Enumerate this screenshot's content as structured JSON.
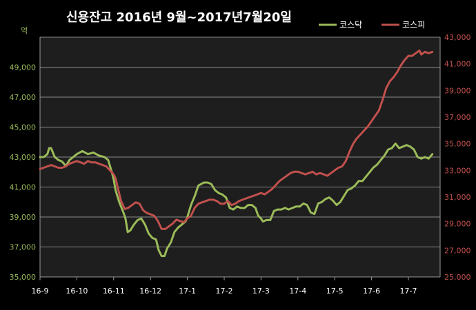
{
  "chart_data": {
    "type": "line",
    "title": "신용잔고  2016년 9월~2017년7월20일",
    "left_unit": "억",
    "x_ticks": [
      "16-9",
      "16-10",
      "16-11",
      "16-12",
      "17-1",
      "17-2",
      "17-3",
      "17-4",
      "17-5",
      "17-6",
      "17-7"
    ],
    "y_left": {
      "min": 35000,
      "max": 51000,
      "ticks": [
        "35,000",
        "37,000",
        "39,000",
        "41,000",
        "43,000",
        "45,000",
        "47,000",
        "49,000"
      ],
      "tick_values": [
        35000,
        37000,
        39000,
        41000,
        43000,
        45000,
        47000,
        49000
      ]
    },
    "y_right": {
      "min": 25000,
      "max": 43000,
      "ticks": [
        "25,000",
        "27,000",
        "29,000",
        "31,000",
        "33,000",
        "35,000",
        "37,000",
        "39,000",
        "41,000",
        "43,000"
      ],
      "tick_values": [
        25000,
        27000,
        29000,
        31000,
        33000,
        35000,
        37000,
        39000,
        41000,
        43000
      ]
    },
    "grid": true,
    "legend_position": "top-right",
    "series": [
      {
        "name": "코스닥",
        "axis": "left",
        "color": "#9bbb59",
        "points": [
          [
            0.0,
            43000
          ],
          [
            0.1,
            43000
          ],
          [
            0.2,
            43200
          ],
          [
            0.25,
            43600
          ],
          [
            0.3,
            43600
          ],
          [
            0.35,
            43300
          ],
          [
            0.4,
            43000
          ],
          [
            0.5,
            42800
          ],
          [
            0.6,
            42700
          ],
          [
            0.7,
            42400
          ],
          [
            0.8,
            42800
          ],
          [
            0.9,
            43000
          ],
          [
            1.0,
            43200
          ],
          [
            1.15,
            43400
          ],
          [
            1.3,
            43200
          ],
          [
            1.45,
            43300
          ],
          [
            1.6,
            43100
          ],
          [
            1.75,
            43000
          ],
          [
            1.85,
            42800
          ],
          [
            1.95,
            42000
          ],
          [
            2.0,
            41500
          ],
          [
            2.05,
            40800
          ],
          [
            2.15,
            40000
          ],
          [
            2.25,
            39400
          ],
          [
            2.32,
            38900
          ],
          [
            2.38,
            38000
          ],
          [
            2.45,
            38100
          ],
          [
            2.55,
            38500
          ],
          [
            2.65,
            38800
          ],
          [
            2.75,
            38900
          ],
          [
            2.85,
            38500
          ],
          [
            2.95,
            37900
          ],
          [
            3.05,
            37600
          ],
          [
            3.15,
            37500
          ],
          [
            3.22,
            36800
          ],
          [
            3.3,
            36400
          ],
          [
            3.38,
            36400
          ],
          [
            3.45,
            36900
          ],
          [
            3.55,
            37300
          ],
          [
            3.65,
            38000
          ],
          [
            3.75,
            38300
          ],
          [
            3.85,
            38500
          ],
          [
            3.95,
            38700
          ],
          [
            4.0,
            39000
          ],
          [
            4.1,
            39800
          ],
          [
            4.2,
            40400
          ],
          [
            4.3,
            41100
          ],
          [
            4.45,
            41300
          ],
          [
            4.55,
            41300
          ],
          [
            4.65,
            41200
          ],
          [
            4.75,
            40800
          ],
          [
            4.85,
            40600
          ],
          [
            4.95,
            40500
          ],
          [
            5.05,
            40300
          ],
          [
            5.15,
            39600
          ],
          [
            5.25,
            39500
          ],
          [
            5.35,
            39700
          ],
          [
            5.45,
            39600
          ],
          [
            5.55,
            39600
          ],
          [
            5.65,
            39800
          ],
          [
            5.75,
            39800
          ],
          [
            5.85,
            39600
          ],
          [
            5.92,
            39100
          ],
          [
            6.0,
            38900
          ],
          [
            6.05,
            38700
          ],
          [
            6.15,
            38800
          ],
          [
            6.25,
            38800
          ],
          [
            6.35,
            39400
          ],
          [
            6.45,
            39500
          ],
          [
            6.55,
            39500
          ],
          [
            6.65,
            39600
          ],
          [
            6.75,
            39500
          ],
          [
            6.85,
            39600
          ],
          [
            6.95,
            39700
          ],
          [
            7.05,
            39700
          ],
          [
            7.15,
            39900
          ],
          [
            7.25,
            39800
          ],
          [
            7.35,
            39300
          ],
          [
            7.45,
            39200
          ],
          [
            7.55,
            39900
          ],
          [
            7.65,
            40000
          ],
          [
            7.75,
            40200
          ],
          [
            7.85,
            40300
          ],
          [
            7.95,
            40100
          ],
          [
            8.05,
            39800
          ],
          [
            8.15,
            40000
          ],
          [
            8.25,
            40400
          ],
          [
            8.35,
            40800
          ],
          [
            8.45,
            40900
          ],
          [
            8.55,
            41100
          ],
          [
            8.65,
            41400
          ],
          [
            8.75,
            41400
          ],
          [
            8.85,
            41700
          ],
          [
            8.95,
            42000
          ],
          [
            9.05,
            42300
          ],
          [
            9.15,
            42500
          ],
          [
            9.25,
            42800
          ],
          [
            9.35,
            43100
          ],
          [
            9.45,
            43500
          ],
          [
            9.55,
            43600
          ],
          [
            9.65,
            43900
          ],
          [
            9.75,
            43600
          ],
          [
            9.85,
            43700
          ],
          [
            9.95,
            43800
          ],
          [
            10.05,
            43700
          ],
          [
            10.15,
            43500
          ],
          [
            10.25,
            43000
          ],
          [
            10.35,
            42900
          ],
          [
            10.45,
            43000
          ],
          [
            10.55,
            42900
          ],
          [
            10.65,
            43200
          ]
        ]
      },
      {
        "name": "코스피",
        "axis": "right",
        "color": "#c0504d",
        "points": [
          [
            0.0,
            33100
          ],
          [
            0.1,
            33200
          ],
          [
            0.2,
            33300
          ],
          [
            0.3,
            33400
          ],
          [
            0.4,
            33300
          ],
          [
            0.5,
            33200
          ],
          [
            0.6,
            33200
          ],
          [
            0.7,
            33300
          ],
          [
            0.8,
            33500
          ],
          [
            0.9,
            33600
          ],
          [
            1.0,
            33700
          ],
          [
            1.1,
            33600
          ],
          [
            1.2,
            33500
          ],
          [
            1.3,
            33700
          ],
          [
            1.4,
            33600
          ],
          [
            1.5,
            33600
          ],
          [
            1.6,
            33500
          ],
          [
            1.7,
            33400
          ],
          [
            1.8,
            33300
          ],
          [
            1.9,
            33000
          ],
          [
            2.0,
            32700
          ],
          [
            2.05,
            32400
          ],
          [
            2.12,
            31600
          ],
          [
            2.2,
            30700
          ],
          [
            2.3,
            30100
          ],
          [
            2.4,
            30200
          ],
          [
            2.5,
            30400
          ],
          [
            2.6,
            30600
          ],
          [
            2.7,
            30500
          ],
          [
            2.8,
            30000
          ],
          [
            2.9,
            29800
          ],
          [
            3.0,
            29700
          ],
          [
            3.1,
            29600
          ],
          [
            3.2,
            29200
          ],
          [
            3.3,
            28600
          ],
          [
            3.4,
            28600
          ],
          [
            3.5,
            28800
          ],
          [
            3.6,
            29000
          ],
          [
            3.7,
            29300
          ],
          [
            3.8,
            29200
          ],
          [
            3.9,
            29100
          ],
          [
            4.0,
            29400
          ],
          [
            4.1,
            29600
          ],
          [
            4.2,
            30200
          ],
          [
            4.3,
            30500
          ],
          [
            4.4,
            30600
          ],
          [
            4.5,
            30700
          ],
          [
            4.6,
            30800
          ],
          [
            4.7,
            30800
          ],
          [
            4.8,
            30700
          ],
          [
            4.9,
            30500
          ],
          [
            5.0,
            30500
          ],
          [
            5.1,
            30700
          ],
          [
            5.2,
            30400
          ],
          [
            5.3,
            30500
          ],
          [
            5.4,
            30700
          ],
          [
            5.5,
            30800
          ],
          [
            5.6,
            30900
          ],
          [
            5.7,
            31000
          ],
          [
            5.8,
            31100
          ],
          [
            5.9,
            31200
          ],
          [
            6.0,
            31300
          ],
          [
            6.1,
            31200
          ],
          [
            6.2,
            31400
          ],
          [
            6.3,
            31600
          ],
          [
            6.4,
            31900
          ],
          [
            6.5,
            32200
          ],
          [
            6.6,
            32400
          ],
          [
            6.7,
            32600
          ],
          [
            6.8,
            32800
          ],
          [
            6.9,
            32900
          ],
          [
            7.0,
            32900
          ],
          [
            7.1,
            32800
          ],
          [
            7.2,
            32700
          ],
          [
            7.3,
            32800
          ],
          [
            7.4,
            32900
          ],
          [
            7.5,
            32700
          ],
          [
            7.6,
            32800
          ],
          [
            7.7,
            32700
          ],
          [
            7.8,
            32600
          ],
          [
            7.9,
            32800
          ],
          [
            8.0,
            33000
          ],
          [
            8.1,
            33200
          ],
          [
            8.2,
            33300
          ],
          [
            8.3,
            33700
          ],
          [
            8.4,
            34400
          ],
          [
            8.5,
            35000
          ],
          [
            8.6,
            35400
          ],
          [
            8.7,
            35700
          ],
          [
            8.8,
            36000
          ],
          [
            8.9,
            36300
          ],
          [
            9.0,
            36700
          ],
          [
            9.1,
            37100
          ],
          [
            9.2,
            37500
          ],
          [
            9.3,
            38300
          ],
          [
            9.4,
            39200
          ],
          [
            9.5,
            39700
          ],
          [
            9.6,
            40000
          ],
          [
            9.7,
            40400
          ],
          [
            9.8,
            40900
          ],
          [
            9.9,
            41300
          ],
          [
            10.0,
            41600
          ],
          [
            10.1,
            41600
          ],
          [
            10.2,
            41800
          ],
          [
            10.3,
            42000
          ],
          [
            10.35,
            41700
          ],
          [
            10.45,
            41900
          ],
          [
            10.55,
            41800
          ],
          [
            10.65,
            41900
          ]
        ]
      }
    ]
  }
}
